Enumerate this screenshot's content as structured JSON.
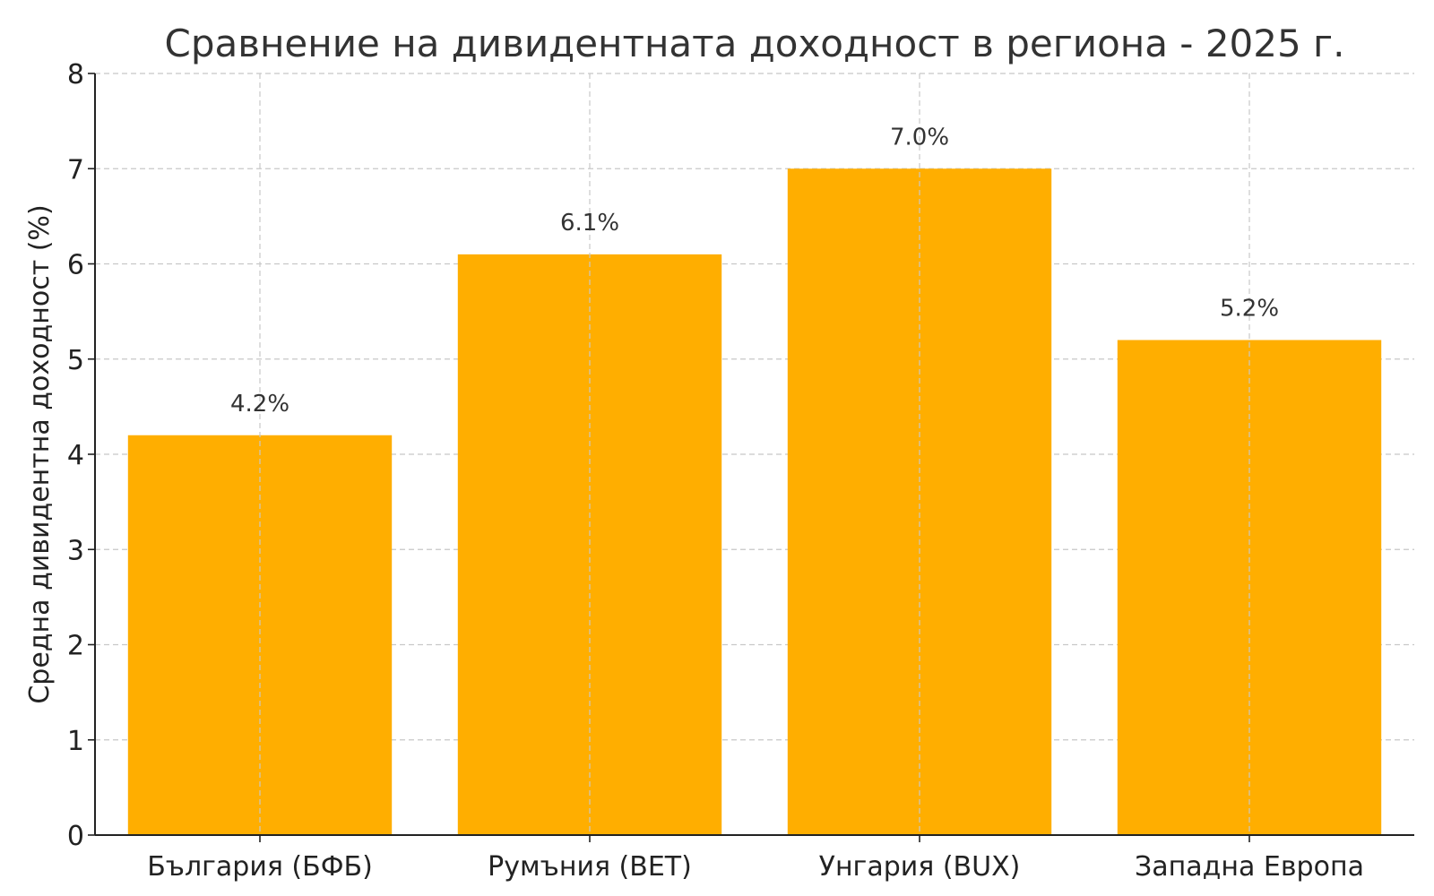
{
  "chart_data": {
    "type": "bar",
    "title": "Сравнение на дивидентната доходност в региона - 2025 г.",
    "xlabel": "",
    "ylabel": "Средна дивидентна доходност (%)",
    "categories": [
      "България (БФБ)",
      "Румъния (BET)",
      "Унгария (BUX)",
      "Западна Европа"
    ],
    "values": [
      4.2,
      6.1,
      7.0,
      5.2
    ],
    "data_labels": [
      "4.2%",
      "6.1%",
      "7.0%",
      "5.2%"
    ],
    "ylim": [
      0,
      8
    ],
    "yticks": [
      0,
      1,
      2,
      3,
      4,
      5,
      6,
      7,
      8
    ],
    "grid": true,
    "legend": "none",
    "bar_color": "#FFAE00"
  }
}
